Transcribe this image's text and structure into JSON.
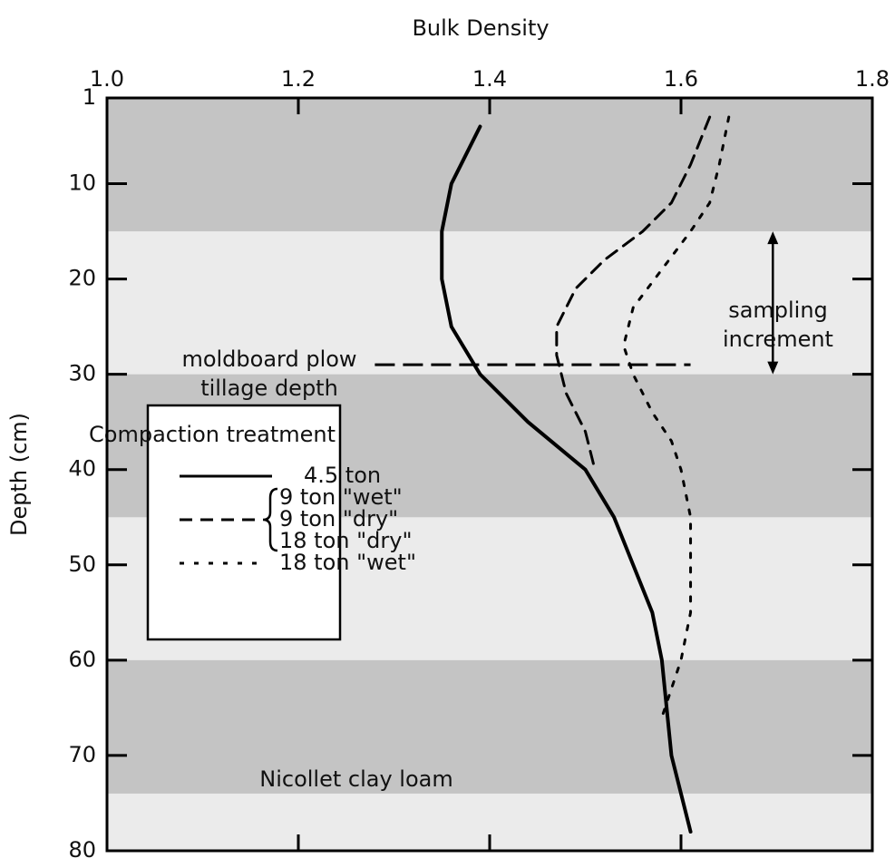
{
  "chart_data": {
    "type": "line",
    "xlabel": "Bulk Density",
    "ylabel": "Depth (cm)",
    "xlim": [
      1.0,
      1.8
    ],
    "xticks": [
      {
        "value": 1.0,
        "label": "1.0"
      },
      1.2,
      1.4,
      1.6,
      1.8
    ],
    "ylim": [
      1,
      80
    ],
    "yticks": [
      1,
      10,
      20,
      30,
      40,
      50,
      60,
      70,
      80
    ],
    "y_inverted": true,
    "bands": [
      [
        1,
        15
      ],
      [
        30,
        45
      ],
      [
        60,
        74
      ]
    ],
    "band_color": "#c4c4c4",
    "background": "#ebebeb",
    "legend_title": "Compaction treatment",
    "series": [
      {
        "names": [
          "4.5 ton"
        ],
        "dash": "solid",
        "color": "#000000",
        "depth": [
          4,
          10,
          15,
          20,
          25,
          30,
          35,
          40,
          45,
          50,
          55,
          60,
          65,
          70,
          78
        ],
        "values": [
          1.39,
          1.36,
          1.35,
          1.35,
          1.36,
          1.39,
          1.44,
          1.5,
          1.53,
          1.55,
          1.57,
          1.58,
          1.585,
          1.59,
          1.61
        ]
      },
      {
        "names": [
          "9 ton \"wet\"",
          "9 ton \"dry\"",
          "18 ton \"dry\""
        ],
        "dash": "dashed",
        "color": "#000000",
        "depth": [
          3,
          8,
          12,
          15,
          18,
          21,
          25,
          28,
          32,
          36,
          40
        ],
        "values": [
          1.63,
          1.61,
          1.59,
          1.56,
          1.52,
          1.49,
          1.47,
          1.47,
          1.48,
          1.5,
          1.51
        ]
      },
      {
        "names": [
          "18 ton \"wet\""
        ],
        "dash": "dotted",
        "color": "#000000",
        "depth": [
          3,
          8,
          12,
          15,
          19,
          23,
          27,
          30,
          34,
          37,
          40,
          45,
          50,
          55,
          60,
          63,
          66
        ],
        "values": [
          1.65,
          1.64,
          1.63,
          1.61,
          1.58,
          1.55,
          1.54,
          1.55,
          1.57,
          1.59,
          1.6,
          1.61,
          1.61,
          1.61,
          1.6,
          1.59,
          1.58
        ]
      }
    ],
    "annotations": [
      {
        "lines": [
          "moldboard plow",
          "tillage depth"
        ],
        "depth": 29,
        "x_from": 1.28,
        "x_to": 1.61
      },
      {
        "lines": [
          "sampling",
          "increment"
        ],
        "x": 1.696,
        "depth_from": 15,
        "depth_to": 30
      },
      {
        "lines": [
          "Nicollet clay loam"
        ]
      }
    ]
  }
}
